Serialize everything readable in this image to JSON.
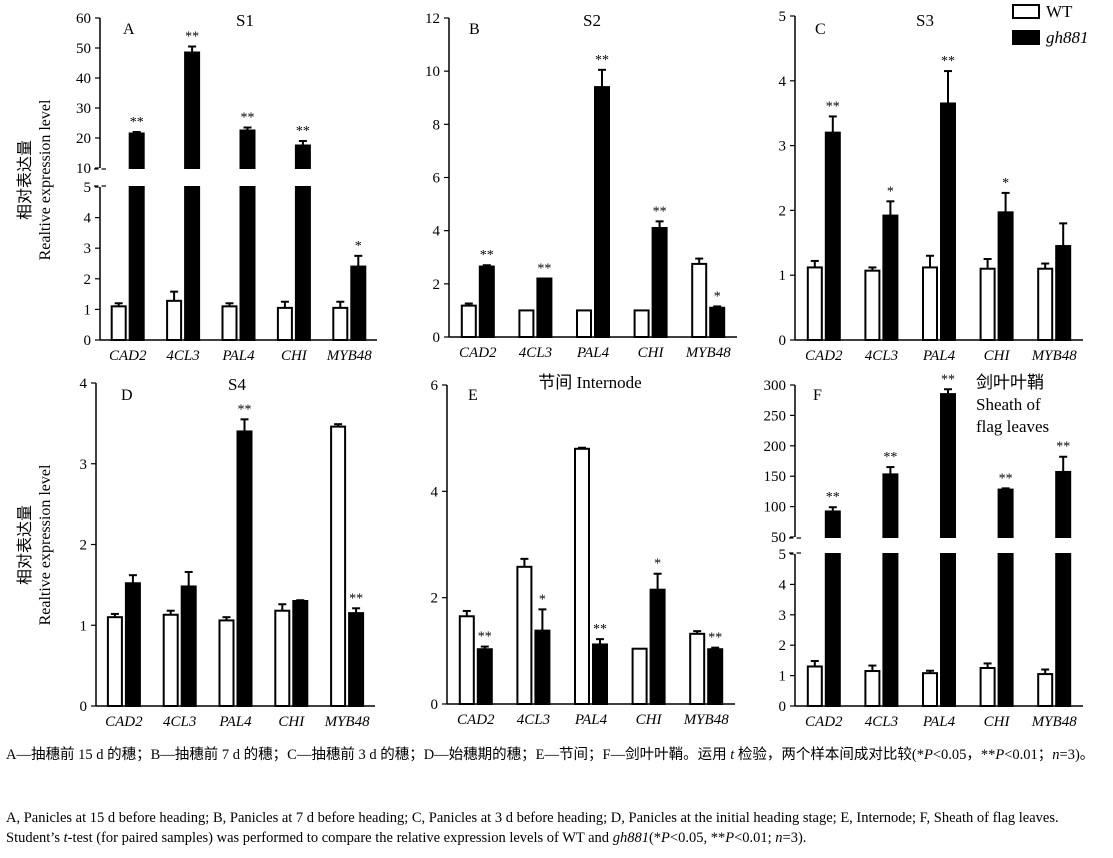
{
  "legend": [
    {
      "label": "WT",
      "fill": "#ffffff"
    },
    {
      "label": "gh881",
      "fill": "#000000"
    }
  ],
  "y_label": {
    "cn": "相对表达量",
    "en": "Realtive expression level"
  },
  "chart_data": [
    {
      "type": "bar",
      "panel": "A",
      "title": "S1",
      "categories": [
        "CAD2",
        "4CL3",
        "PAL4",
        "CHI",
        "MYB48"
      ],
      "ylim": [
        0,
        60
      ],
      "axis_break": [
        5,
        10
      ],
      "yticks_low": [
        0,
        1,
        2,
        3,
        4,
        5
      ],
      "yticks_high": [
        10,
        20,
        30,
        40,
        50,
        60
      ],
      "series": [
        {
          "name": "WT",
          "values": [
            1.1,
            1.28,
            1.1,
            1.05,
            1.05
          ],
          "errors": [
            0.1,
            0.3,
            0.1,
            0.2,
            0.2
          ],
          "sig": [
            "",
            "",
            "",
            "",
            ""
          ]
        },
        {
          "name": "gh881",
          "values": [
            21.5,
            48.5,
            22.5,
            17.5,
            2.4
          ],
          "errors": [
            0.5,
            2.0,
            1.0,
            1.5,
            0.35
          ],
          "sig": [
            "**",
            "**",
            "**",
            "**",
            "*"
          ]
        }
      ]
    },
    {
      "type": "bar",
      "panel": "B",
      "title": "S2",
      "categories": [
        "CAD2",
        "4CL3",
        "PAL4",
        "CHI",
        "MYB48"
      ],
      "ylim": [
        0,
        12
      ],
      "yticks": [
        0,
        2,
        4,
        6,
        8,
        10,
        12
      ],
      "series": [
        {
          "name": "WT",
          "values": [
            1.18,
            1.0,
            1.0,
            1.0,
            2.75
          ],
          "errors": [
            0.08,
            0,
            0,
            0,
            0.2
          ],
          "sig": [
            "",
            "",
            "",
            "",
            ""
          ]
        },
        {
          "name": "gh881",
          "values": [
            2.65,
            2.2,
            9.4,
            4.1,
            1.1
          ],
          "errors": [
            0.05,
            0,
            0.65,
            0.25,
            0.05
          ],
          "sig": [
            "**",
            "**",
            "**",
            "**",
            "*"
          ]
        }
      ]
    },
    {
      "type": "bar",
      "panel": "C",
      "title": "S3",
      "categories": [
        "CAD2",
        "4CL3",
        "PAL4",
        "CHI",
        "MYB48"
      ],
      "ylim": [
        0,
        5
      ],
      "yticks": [
        0,
        1,
        2,
        3,
        4,
        5
      ],
      "series": [
        {
          "name": "WT",
          "values": [
            1.12,
            1.07,
            1.12,
            1.1,
            1.1
          ],
          "errors": [
            0.1,
            0.05,
            0.18,
            0.15,
            0.08
          ],
          "sig": [
            "",
            "",
            "",
            "",
            ""
          ]
        },
        {
          "name": "gh881",
          "values": [
            3.2,
            1.92,
            3.65,
            1.97,
            1.45
          ],
          "errors": [
            0.25,
            0.22,
            0.5,
            0.3,
            0.35
          ],
          "sig": [
            "**",
            "*",
            "**",
            "*",
            ""
          ]
        }
      ]
    },
    {
      "type": "bar",
      "panel": "D",
      "title": "S4",
      "categories": [
        "CAD2",
        "4CL3",
        "PAL4",
        "CHI",
        "MYB48"
      ],
      "ylim": [
        0,
        4
      ],
      "yticks": [
        0,
        1,
        2,
        3,
        4
      ],
      "series": [
        {
          "name": "WT",
          "values": [
            1.1,
            1.13,
            1.06,
            1.18,
            3.46
          ],
          "errors": [
            0.04,
            0.05,
            0.04,
            0.08,
            0.03
          ],
          "sig": [
            "",
            "",
            "",
            "",
            ""
          ]
        },
        {
          "name": "gh881",
          "values": [
            1.52,
            1.48,
            3.4,
            1.3,
            1.15
          ],
          "errors": [
            0.1,
            0.18,
            0.15,
            0.01,
            0.06
          ],
          "sig": [
            "",
            "",
            "**",
            "",
            "**"
          ]
        }
      ]
    },
    {
      "type": "bar",
      "panel": "E",
      "title": "节间 Internode",
      "categories": [
        "CAD2",
        "4CL3",
        "PAL4",
        "CHI",
        "MYB48"
      ],
      "ylim": [
        0,
        6
      ],
      "yticks": [
        0,
        2,
        4,
        6
      ],
      "series": [
        {
          "name": "WT",
          "values": [
            1.65,
            2.58,
            4.8,
            1.04,
            1.32
          ],
          "errors": [
            0.1,
            0.15,
            0.02,
            0,
            0.05
          ],
          "sig": [
            "",
            "",
            "",
            "",
            ""
          ]
        },
        {
          "name": "gh881",
          "values": [
            1.03,
            1.38,
            1.12,
            2.15,
            1.03
          ],
          "errors": [
            0.05,
            0.4,
            0.1,
            0.3,
            0.03
          ],
          "sig": [
            "**",
            "*",
            "**",
            "*",
            "**"
          ]
        }
      ]
    },
    {
      "type": "bar",
      "panel": "F",
      "title": "剑叶叶鞘 Sheath of flag leaves",
      "categories": [
        "CAD2",
        "4CL3",
        "PAL4",
        "CHI",
        "MYB48"
      ],
      "ylim": [
        0,
        300
      ],
      "axis_break": [
        5,
        50
      ],
      "yticks_low": [
        0,
        1,
        2,
        3,
        4,
        5
      ],
      "yticks_high": [
        50,
        100,
        150,
        200,
        250,
        300
      ],
      "series": [
        {
          "name": "WT",
          "values": [
            1.3,
            1.15,
            1.08,
            1.25,
            1.05
          ],
          "errors": [
            0.18,
            0.18,
            0.08,
            0.15,
            0.15
          ],
          "sig": [
            "",
            "",
            "",
            "",
            ""
          ]
        },
        {
          "name": "gh881",
          "values": [
            92,
            153,
            285,
            128,
            157
          ],
          "errors": [
            7,
            12,
            8,
            2,
            25
          ],
          "sig": [
            "**",
            "**",
            "**",
            "**",
            "**"
          ]
        }
      ]
    }
  ],
  "captions": {
    "cn": [
      {
        "t": "A—抽穗前 15 d 的穗；B—抽穗前 7 d 的穗；C—抽穗前 3 d 的穗；D—始穗期的穗；E—节间；F—剑叶叶鞘。运用 "
      },
      {
        "t": "t",
        "i": true
      },
      {
        "t": " 检验，两个样本间成对比较(*"
      },
      {
        "t": "P",
        "i": true
      },
      {
        "t": "<0.05，**"
      },
      {
        "t": "P",
        "i": true
      },
      {
        "t": "<0.01；"
      },
      {
        "t": "n",
        "i": true
      },
      {
        "t": "=3)。"
      }
    ],
    "en": [
      {
        "t": "A, Panicles at 15 d before heading; B, Panicles at 7 d before heading; C, Panicles at 3 d before heading; D, Panicles at the initial heading stage; E, Internode; F, Sheath of flag leaves. Student’s "
      },
      {
        "t": "t",
        "i": true
      },
      {
        "t": "-test (for paired samples) was performed to compare the relative expression levels of WT and "
      },
      {
        "t": "gh881",
        "i": true
      },
      {
        "t": "(*"
      },
      {
        "t": "P",
        "i": true
      },
      {
        "t": "<0.05, **"
      },
      {
        "t": "P",
        "i": true
      },
      {
        "t": "<0.01; "
      },
      {
        "t": "n",
        "i": true
      },
      {
        "t": "=3)."
      }
    ]
  }
}
